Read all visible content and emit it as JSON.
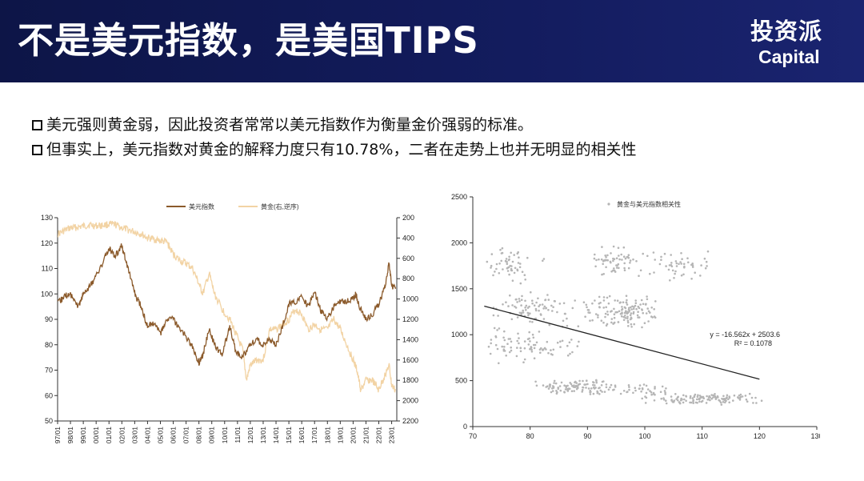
{
  "header": {
    "title": "不是美元指数，是美国TIPS",
    "brand_cn": "投资派",
    "brand_en": "Capital"
  },
  "bullets": [
    "美元强则黄金弱，因此投资者常常以美元指数作为衡量金价强弱的标准。",
    "但事实上，美元指数对黄金的解释力度只有10.78%，二者在走势上也并无明显的相关性"
  ],
  "colors": {
    "header_bg": "#131c5e",
    "usd_line": "#8b5a2b",
    "gold_line": "#f2d3a4",
    "scatter": "#b5b5b5",
    "trend": "#222222"
  },
  "chart_data": [
    {
      "type": "line",
      "title": "",
      "legend": [
        "美元指数",
        "黄金(右,逆序)"
      ],
      "legend_position": "top",
      "x_ticks": [
        "97/01",
        "98/01",
        "99/01",
        "00/01",
        "01/01",
        "02/01",
        "03/01",
        "04/01",
        "05/01",
        "06/01",
        "07/01",
        "08/01",
        "09/01",
        "10/01",
        "11/01",
        "12/01",
        "13/01",
        "14/01",
        "15/01",
        "16/01",
        "17/01",
        "18/01",
        "19/01",
        "20/01",
        "21/01",
        "22/01",
        "23/01"
      ],
      "y_left": {
        "lim": [
          50,
          130
        ],
        "ticks": [
          "130",
          "120",
          "110",
          "100",
          "90",
          "80",
          "70",
          "60",
          "50"
        ]
      },
      "y_right": {
        "lim": [
          200,
          2200
        ],
        "reversed": true,
        "ticks": [
          "200",
          "400",
          "600",
          "800",
          "1000",
          "1200",
          "1400",
          "1600",
          "1800",
          "2000",
          "2200"
        ]
      },
      "series": [
        {
          "name": "美元指数",
          "axis": "left",
          "x": [
            1997,
            1997.5,
            1998,
            1998.6,
            1999,
            1999.5,
            2000,
            2000.5,
            2001,
            2001.5,
            2002,
            2002.5,
            2003,
            2003.5,
            2004,
            2004.5,
            2005,
            2005.5,
            2006,
            2006.5,
            2007,
            2007.5,
            2008,
            2008.3,
            2008.8,
            2009.2,
            2009.8,
            2010.4,
            2010.9,
            2011.4,
            2011.9,
            2012.5,
            2013,
            2013.5,
            2014,
            2014.5,
            2015,
            2015.5,
            2016,
            2016.5,
            2017,
            2017.5,
            2018,
            2018.5,
            2019,
            2019.5,
            2020,
            2020.2,
            2020.5,
            2021,
            2021.5,
            2022,
            2022.5,
            2022.8,
            2023,
            2023.3
          ],
          "values": [
            96,
            99,
            100,
            95,
            100,
            103,
            107,
            112,
            118,
            115,
            119,
            110,
            100,
            95,
            87,
            89,
            84,
            90,
            90,
            86,
            83,
            79,
            73,
            76,
            86,
            80,
            76,
            87,
            77,
            75,
            80,
            82,
            80,
            82,
            80,
            87,
            96,
            97,
            99,
            95,
            101,
            93,
            90,
            95,
            97,
            97,
            98,
            100,
            95,
            90,
            92,
            96,
            103,
            112,
            103,
            102
          ]
        },
        {
          "name": "黄金(右,逆序)",
          "axis": "right",
          "x": [
            1997,
            1997.5,
            1998,
            1998.5,
            1999,
            1999.5,
            2000,
            2000.5,
            2001,
            2001.5,
            2002,
            2002.5,
            2003,
            2003.5,
            2004,
            2004.5,
            2005,
            2005.5,
            2006,
            2006.5,
            2007,
            2007.5,
            2008,
            2008.3,
            2008.8,
            2009.2,
            2009.8,
            2010.4,
            2010.9,
            2011.4,
            2011.7,
            2012,
            2012.5,
            2013,
            2013.5,
            2014,
            2014.5,
            2015,
            2015.5,
            2016,
            2016.5,
            2017,
            2017.5,
            2018,
            2018.5,
            2019,
            2019.5,
            2020,
            2020.3,
            2020.6,
            2021,
            2021.5,
            2022,
            2022.3,
            2022.8,
            2023,
            2023.3
          ],
          "values": [
            360,
            330,
            300,
            295,
            285,
            270,
            280,
            275,
            265,
            270,
            300,
            320,
            340,
            360,
            400,
            410,
            430,
            440,
            560,
            620,
            650,
            700,
            850,
            950,
            750,
            950,
            1100,
            1200,
            1350,
            1500,
            1800,
            1650,
            1600,
            1600,
            1300,
            1300,
            1250,
            1200,
            1100,
            1150,
            1300,
            1250,
            1300,
            1300,
            1200,
            1300,
            1450,
            1600,
            1700,
            1900,
            1800,
            1800,
            1900,
            1800,
            1650,
            1850,
            1900
          ]
        }
      ]
    },
    {
      "type": "scatter",
      "title": "",
      "legend": [
        "黄金与美元指数相关性"
      ],
      "legend_position": "top-right",
      "xlim": [
        70,
        130
      ],
      "ylim": [
        0,
        2500
      ],
      "x_ticks": [
        "70",
        "80",
        "90",
        "100",
        "110",
        "120",
        "130"
      ],
      "y_ticks": [
        "0",
        "500",
        "1000",
        "1500",
        "2000",
        "2500"
      ],
      "trendline": {
        "equation": "y = -16.562x + 2503.6",
        "r2": "R² = 0.1078",
        "slope": -16.562,
        "intercept": 2503.6,
        "x_range": [
          72,
          120
        ]
      },
      "clusters": [
        {
          "center": [
            77,
            1750
          ],
          "spread": [
            6,
            150
          ],
          "count": 55
        },
        {
          "center": [
            80,
            1300
          ],
          "spread": [
            8,
            120
          ],
          "count": 80
        },
        {
          "center": [
            80,
            900
          ],
          "spread": [
            9,
            140
          ],
          "count": 90
        },
        {
          "center": [
            96,
            1250
          ],
          "spread": [
            8,
            120
          ],
          "count": 140
        },
        {
          "center": [
            95,
            1800
          ],
          "spread": [
            5,
            110
          ],
          "count": 60
        },
        {
          "center": [
            106,
            1750
          ],
          "spread": [
            7,
            120
          ],
          "count": 50
        },
        {
          "center": [
            88,
            430
          ],
          "spread": [
            8,
            60
          ],
          "count": 110
        },
        {
          "center": [
            110,
            300
          ],
          "spread": [
            11,
            40
          ],
          "count": 130
        },
        {
          "center": [
            100,
            400
          ],
          "spread": [
            5,
            40
          ],
          "count": 30
        }
      ]
    }
  ]
}
